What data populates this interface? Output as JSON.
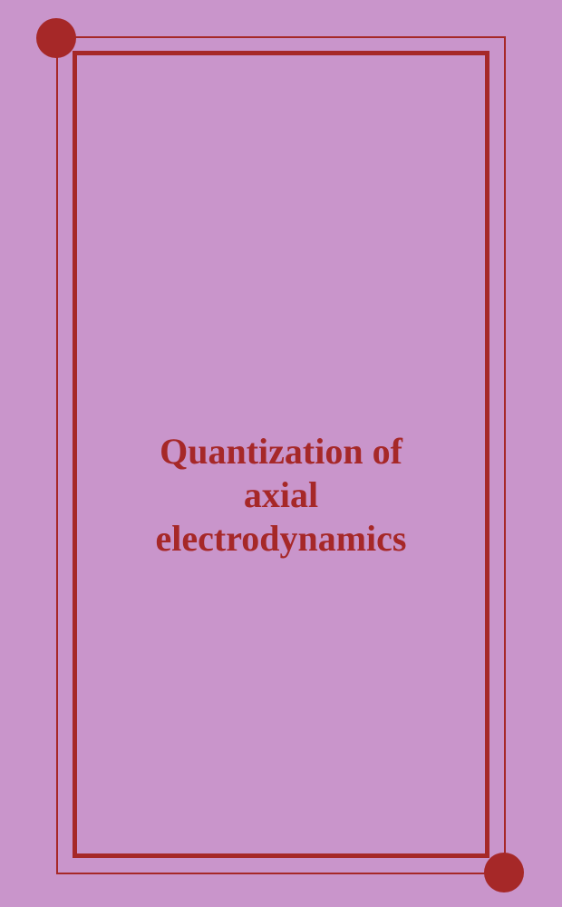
{
  "cover": {
    "title_line1": "Quantization of",
    "title_line2": "axial",
    "title_line3": "electrodynamics"
  },
  "styling": {
    "background_color": "#c995cb",
    "accent_color": "#a62828",
    "title_color": "#a62828",
    "title_fontsize": 40,
    "title_fontweight": "bold",
    "outer_border_width": 2.5,
    "inner_border_width": 5,
    "corner_dot_diameter": 44
  }
}
